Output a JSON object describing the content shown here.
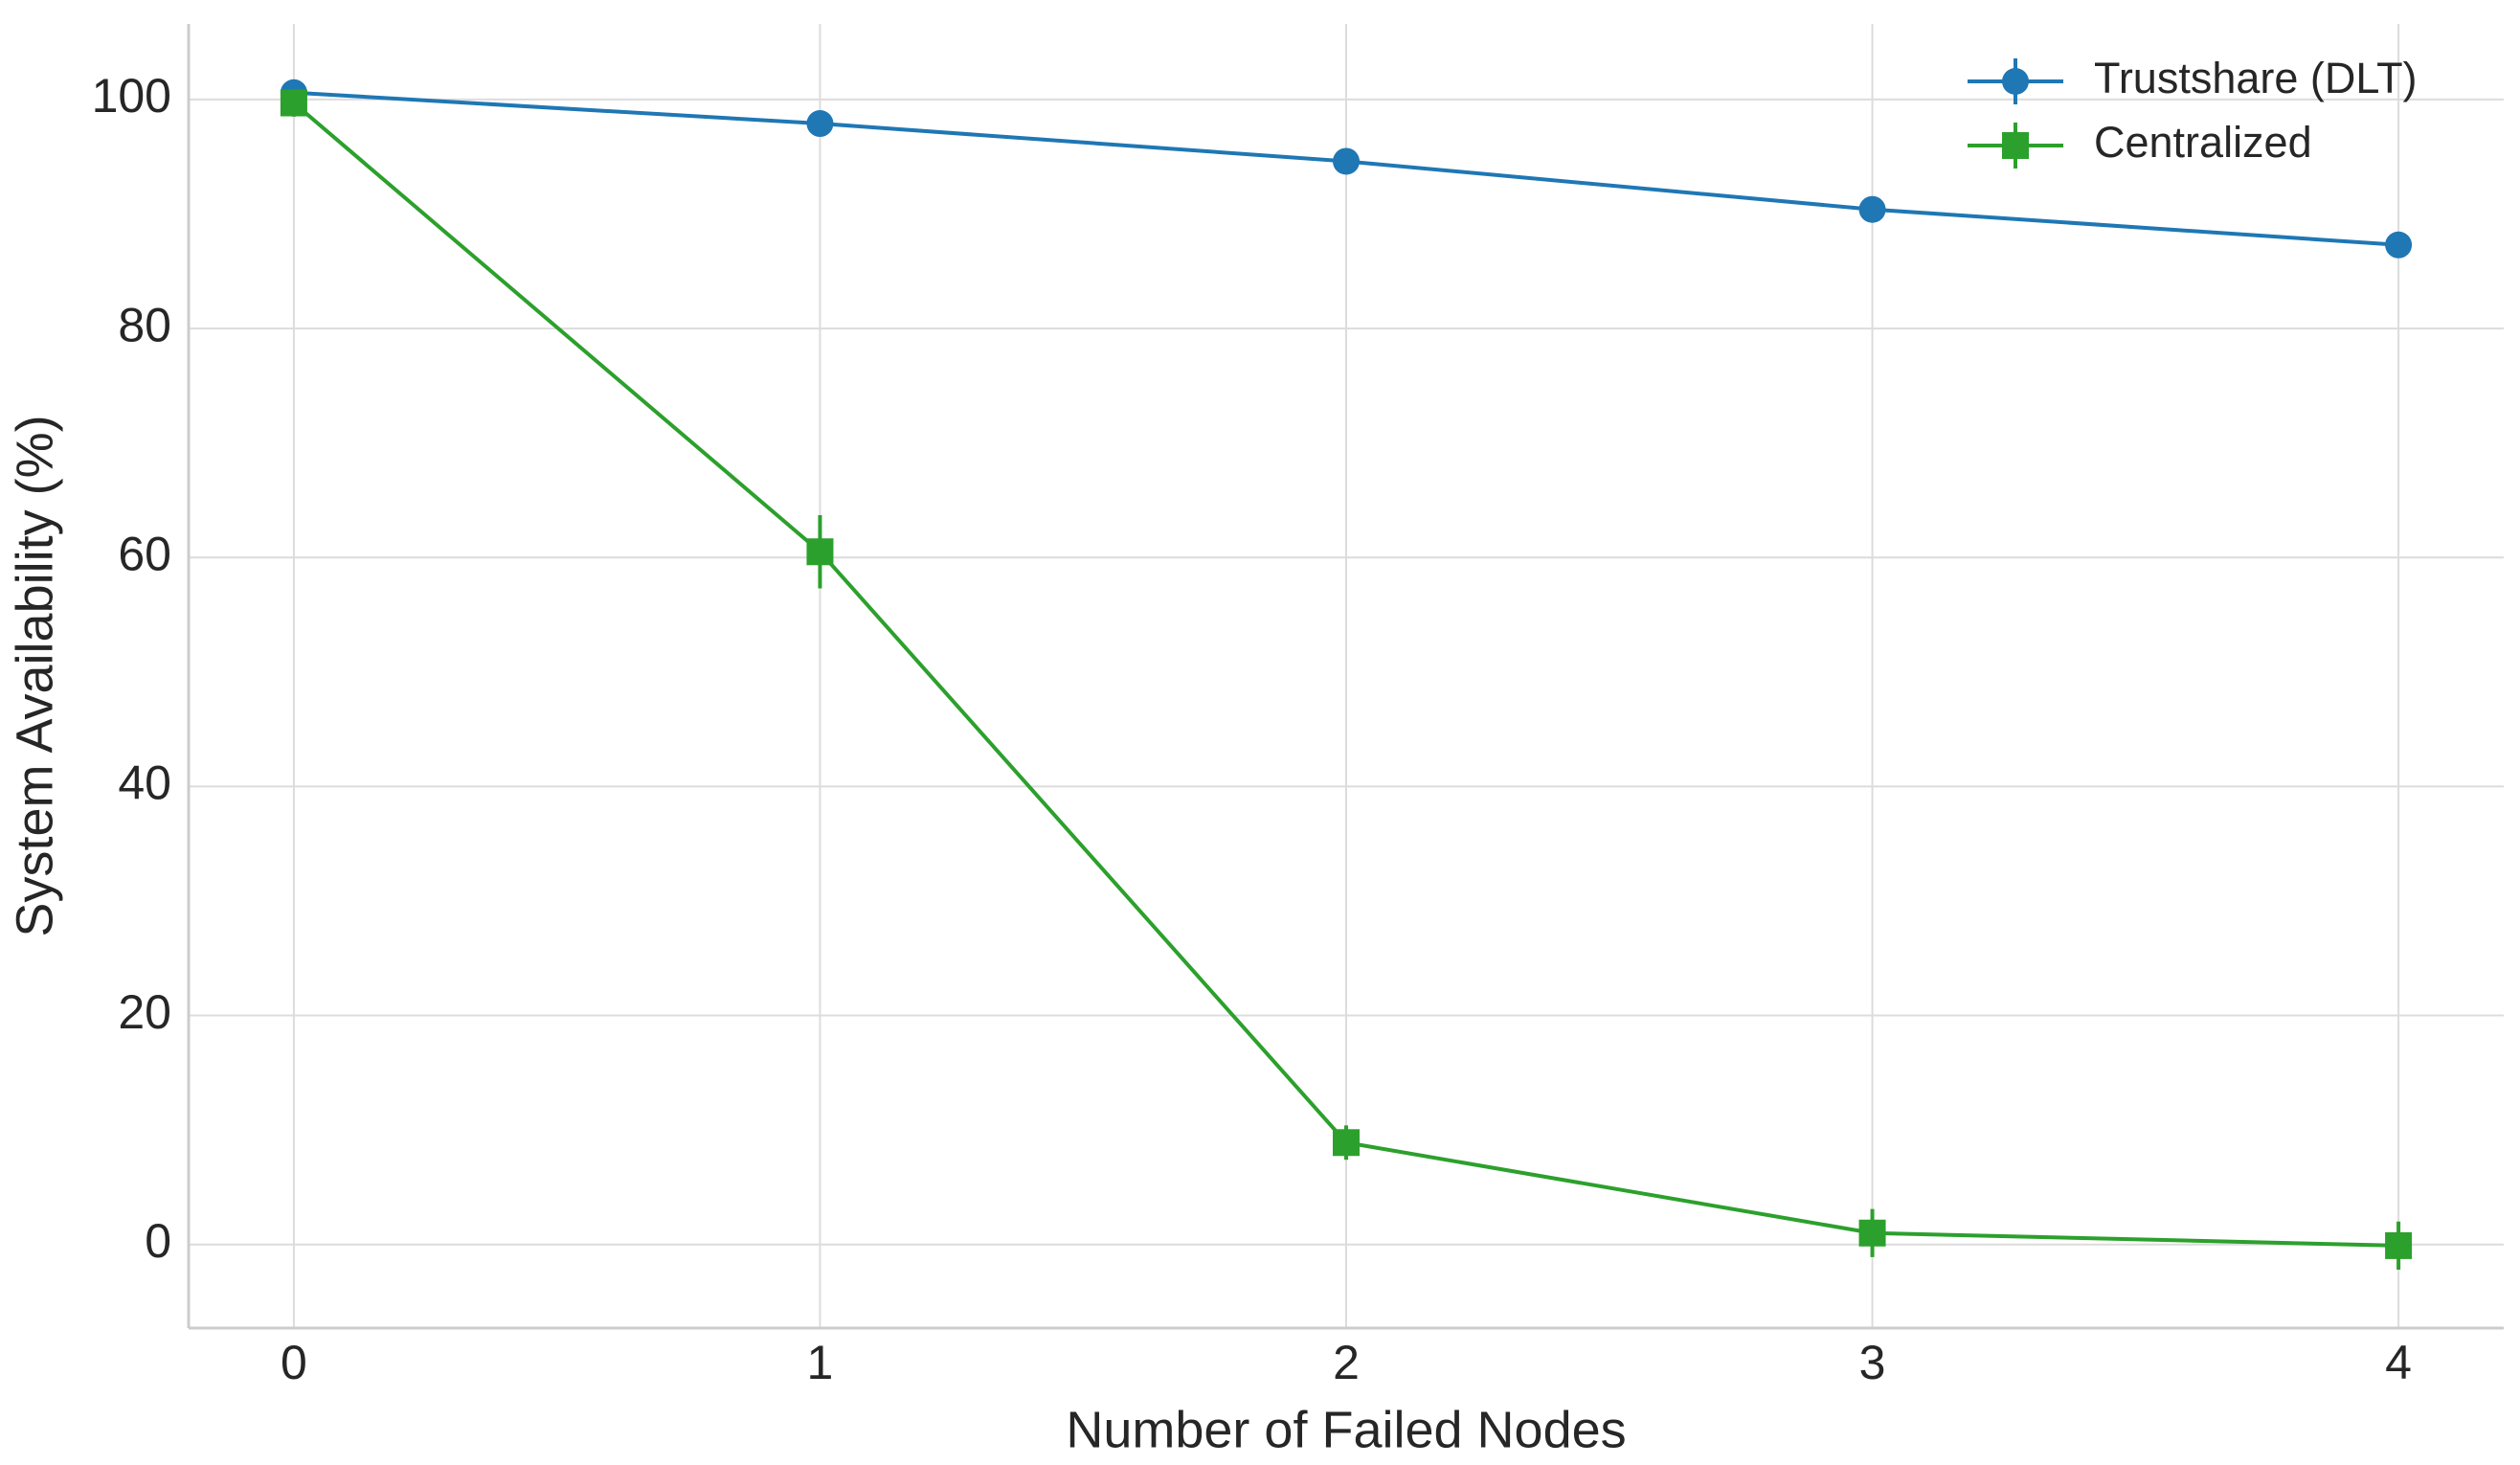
{
  "chart_data": {
    "type": "line",
    "xlabel": "Number of Failed Nodes",
    "ylabel": "System Availability (%)",
    "x": [
      0,
      1,
      2,
      3,
      4
    ],
    "xlim": [
      -0.2,
      4.2
    ],
    "xticks": [
      0,
      1,
      2,
      3,
      4
    ],
    "ylim": [
      -7.3,
      106.6
    ],
    "yticks": [
      0,
      20,
      40,
      60,
      80,
      100
    ],
    "grid": true,
    "legend": "upper right",
    "series": [
      {
        "name": "Trustshare (DLT)",
        "color": "#1f77b4",
        "marker": "circle",
        "values": [
          100.6,
          97.9,
          94.6,
          90.4,
          87.3
        ],
        "errors": [
          0.4,
          0.4,
          0.4,
          0.4,
          0.4
        ]
      },
      {
        "name": "Centralized",
        "color": "#2ca02c",
        "marker": "square",
        "values": [
          99.7,
          60.5,
          8.9,
          1.0,
          -0.1
        ],
        "errors": [
          1.2,
          3.2,
          1.5,
          2.1,
          2.1
        ]
      }
    ]
  }
}
